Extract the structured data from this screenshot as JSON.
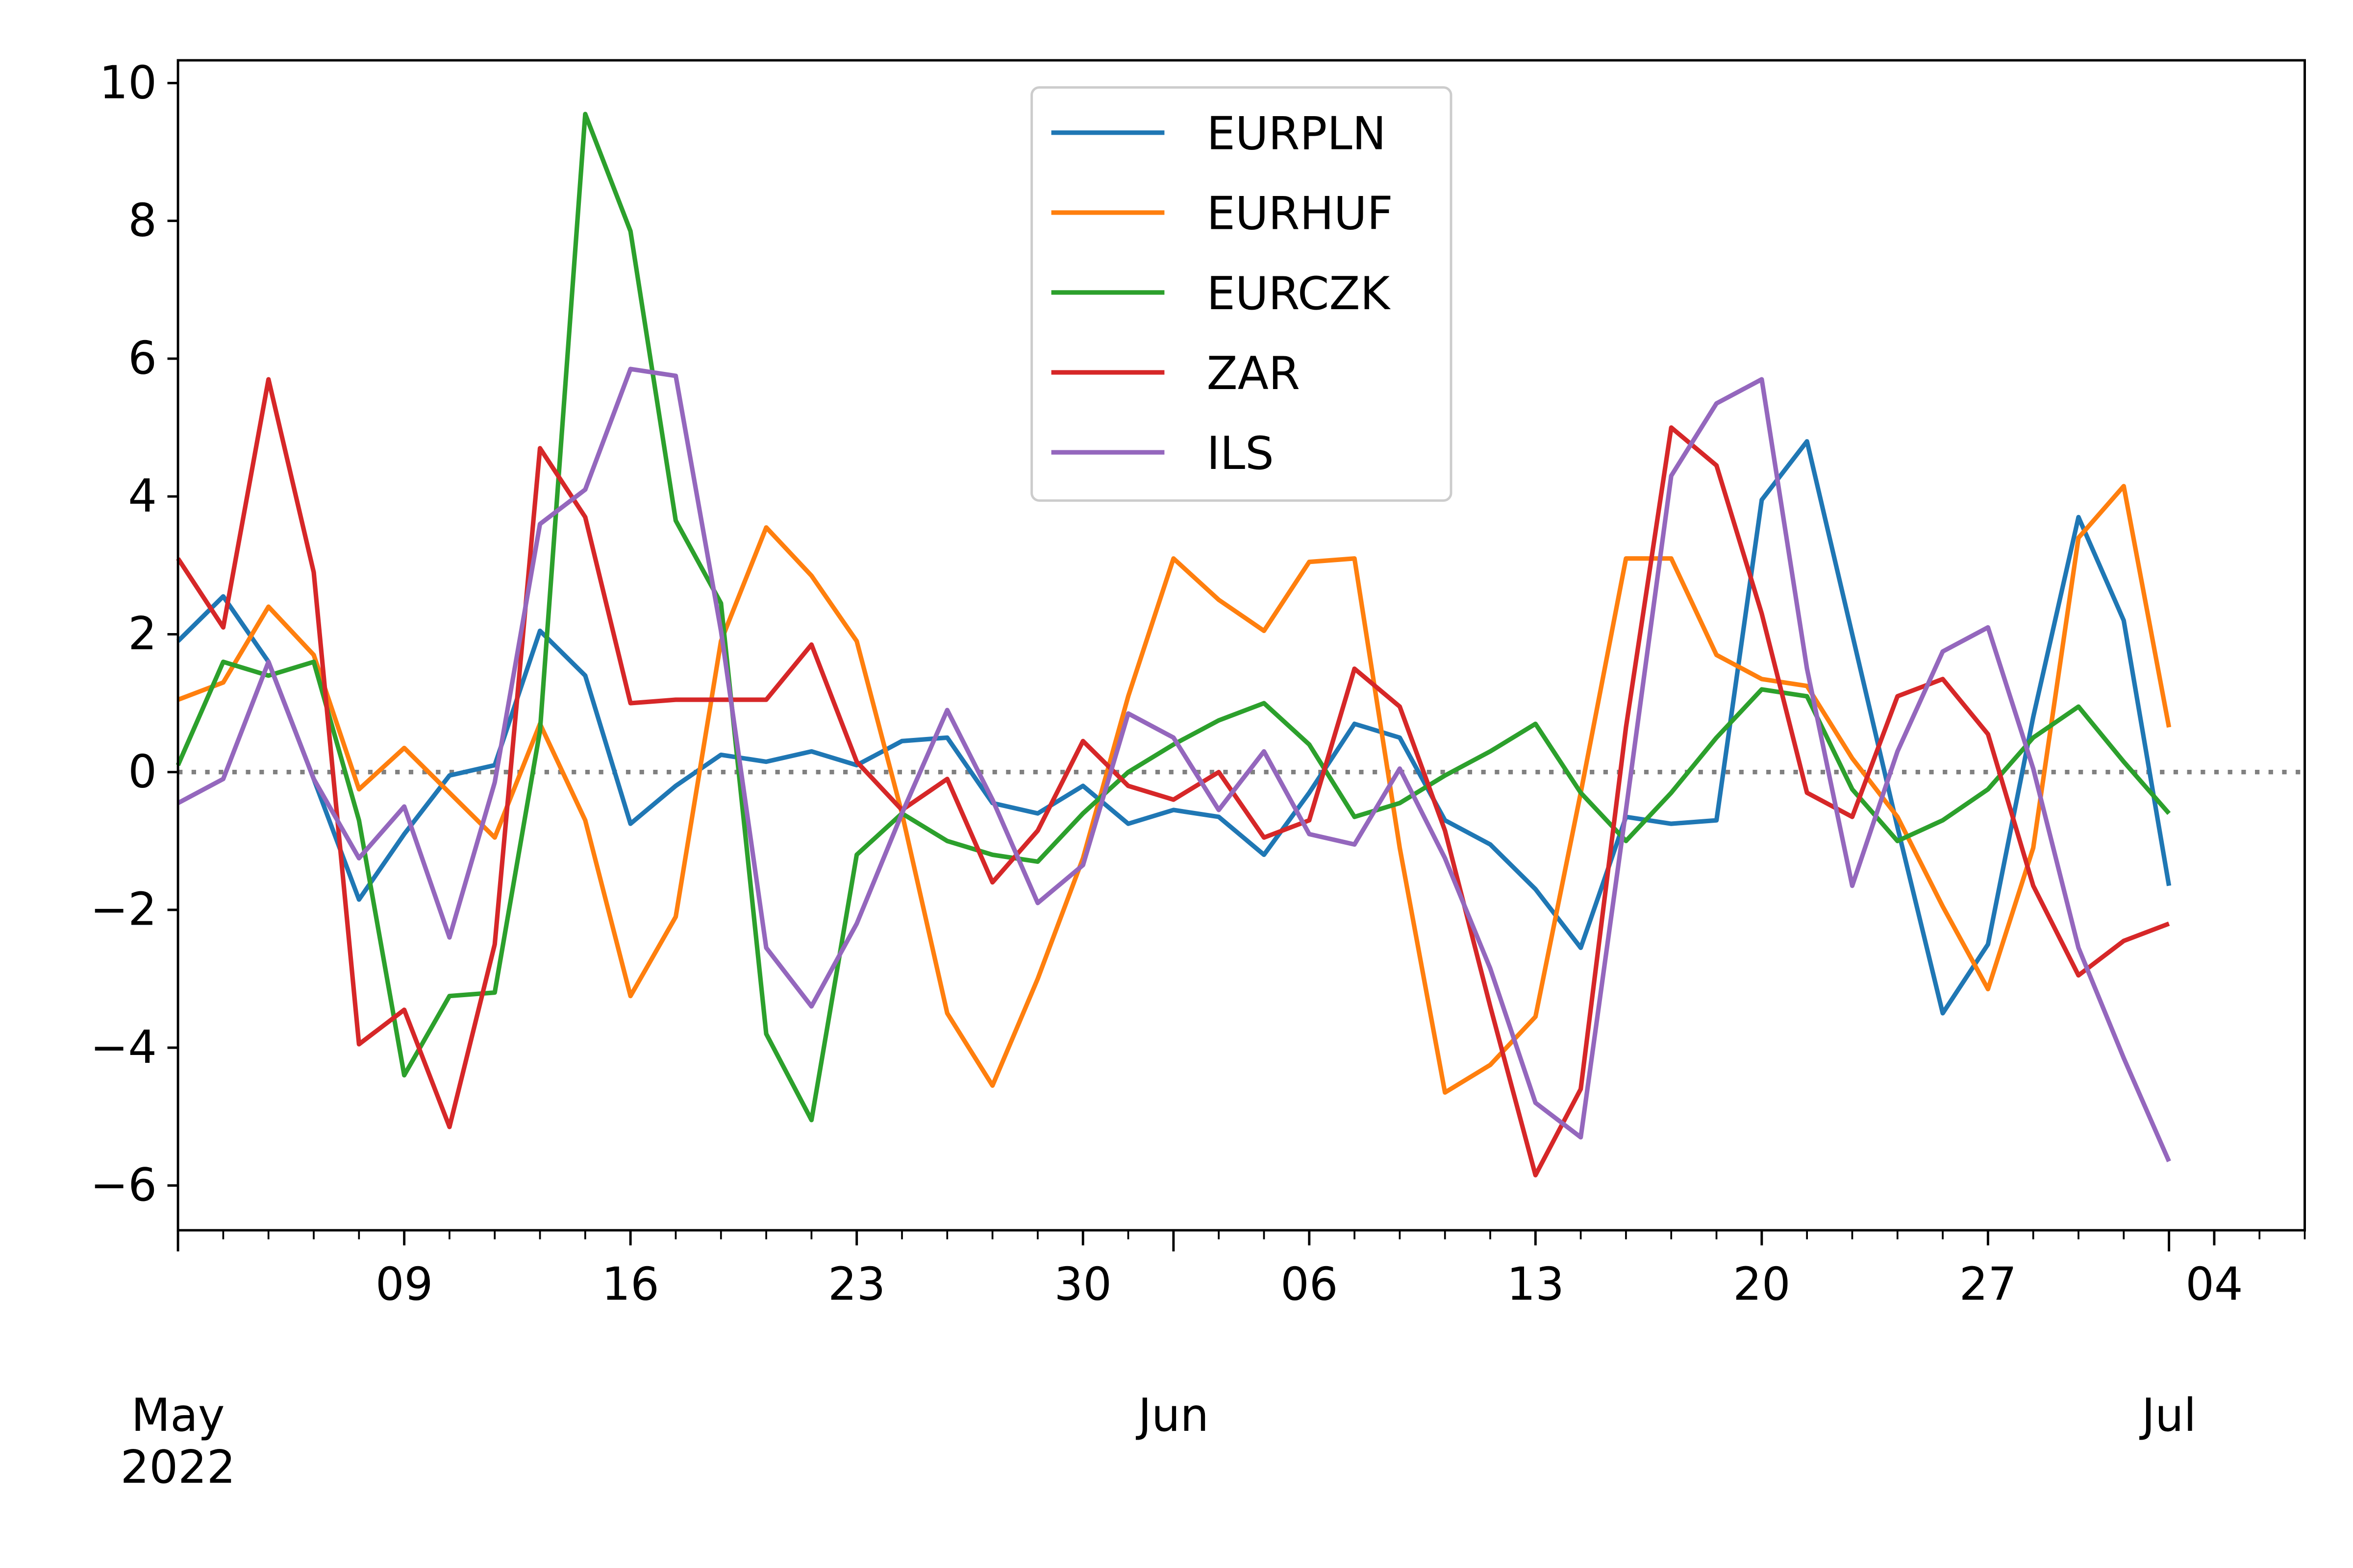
{
  "chart_data": {
    "type": "line",
    "x": [
      "2022-05-02",
      "2022-05-03",
      "2022-05-04",
      "2022-05-05",
      "2022-05-06",
      "2022-05-09",
      "2022-05-10",
      "2022-05-11",
      "2022-05-12",
      "2022-05-13",
      "2022-05-16",
      "2022-05-17",
      "2022-05-18",
      "2022-05-19",
      "2022-05-20",
      "2022-05-23",
      "2022-05-24",
      "2022-05-25",
      "2022-05-26",
      "2022-05-27",
      "2022-05-30",
      "2022-05-31",
      "2022-06-01",
      "2022-06-02",
      "2022-06-03",
      "2022-06-06",
      "2022-06-07",
      "2022-06-08",
      "2022-06-09",
      "2022-06-10",
      "2022-06-13",
      "2022-06-14",
      "2022-06-15",
      "2022-06-16",
      "2022-06-17",
      "2022-06-20",
      "2022-06-21",
      "2022-06-22",
      "2022-06-23",
      "2022-06-24",
      "2022-06-27",
      "2022-06-28",
      "2022-06-29",
      "2022-06-30",
      "2022-07-01"
    ],
    "series": [
      {
        "name": "EURPLN",
        "color": "#1f77b4",
        "values": [
          1.9,
          2.55,
          1.6,
          -0.1,
          -1.85,
          -0.9,
          -0.05,
          0.1,
          2.05,
          1.4,
          -0.75,
          -0.2,
          0.25,
          0.15,
          0.3,
          0.1,
          0.45,
          0.5,
          -0.45,
          -0.6,
          -0.2,
          -0.75,
          -0.55,
          -0.65,
          -1.2,
          -0.3,
          0.7,
          0.5,
          -0.7,
          -1.05,
          -1.7,
          -2.55,
          -0.65,
          -0.75,
          -0.7,
          3.95,
          4.8,
          2.0,
          -0.8,
          -3.5,
          -2.5,
          0.8,
          3.7,
          2.2,
          -1.65
        ]
      },
      {
        "name": "EURHUF",
        "color": "#ff7f0e",
        "values": [
          1.05,
          1.3,
          2.4,
          1.7,
          -0.25,
          0.35,
          -0.3,
          -0.95,
          0.7,
          -0.7,
          -3.25,
          -2.1,
          1.9,
          3.55,
          2.85,
          1.9,
          -0.6,
          -3.5,
          -4.55,
          -3.0,
          -1.25,
          1.1,
          3.1,
          2.5,
          2.05,
          3.05,
          3.1,
          -1.1,
          -4.65,
          -4.25,
          -3.55,
          -0.3,
          3.1,
          3.1,
          1.7,
          1.35,
          1.25,
          0.2,
          -0.65,
          -1.95,
          -3.15,
          -1.1,
          3.4,
          4.15,
          0.65
        ]
      },
      {
        "name": "EURCZK",
        "color": "#2ca02c",
        "values": [
          0.1,
          1.6,
          1.4,
          1.6,
          -0.7,
          -4.4,
          -3.25,
          -3.2,
          0.6,
          9.55,
          7.85,
          3.65,
          2.45,
          -3.8,
          -5.05,
          -1.2,
          -0.6,
          -1.0,
          -1.2,
          -1.3,
          -0.6,
          0.0,
          0.4,
          0.75,
          1.0,
          0.4,
          -0.65,
          -0.45,
          -0.05,
          0.3,
          0.7,
          -0.3,
          -1.0,
          -0.3,
          0.5,
          1.2,
          1.1,
          -0.25,
          -1.0,
          -0.7,
          -0.25,
          0.5,
          0.95,
          0.15,
          -0.6
        ]
      },
      {
        "name": "ZAR",
        "color": "#d62728",
        "values": [
          3.1,
          2.1,
          5.7,
          2.9,
          -3.95,
          -3.45,
          -5.15,
          -2.5,
          4.7,
          3.7,
          1.0,
          1.05,
          1.05,
          1.05,
          1.85,
          0.15,
          -0.55,
          -0.1,
          -1.6,
          -0.85,
          0.45,
          -0.2,
          -0.4,
          0.0,
          -0.95,
          -0.7,
          1.5,
          0.95,
          -0.85,
          -3.4,
          -5.85,
          -4.6,
          0.65,
          5.0,
          4.45,
          2.3,
          -0.3,
          -0.65,
          1.1,
          1.35,
          0.55,
          -1.65,
          -2.95,
          -2.45,
          -2.2
        ]
      },
      {
        "name": "ILS",
        "color": "#9467bd",
        "values": [
          -0.45,
          -0.1,
          1.6,
          -0.1,
          -1.25,
          -0.5,
          -2.4,
          -0.15,
          3.6,
          4.1,
          5.85,
          5.75,
          2.05,
          -2.55,
          -3.4,
          -2.2,
          -0.6,
          0.9,
          -0.4,
          -1.9,
          -1.35,
          0.85,
          0.5,
          -0.55,
          0.3,
          -0.9,
          -1.05,
          0.05,
          -1.25,
          -2.85,
          -4.8,
          -5.3,
          -0.55,
          4.3,
          5.35,
          5.7,
          1.5,
          -1.65,
          0.3,
          1.75,
          2.1,
          0.05,
          -2.55,
          -4.15,
          -5.65
        ]
      }
    ],
    "xlim": [
      "2022-05-02",
      "2022-07-06"
    ],
    "xticks": [
      {
        "value": "2022-05-09",
        "label": "09"
      },
      {
        "value": "2022-05-16",
        "label": "16"
      },
      {
        "value": "2022-05-23",
        "label": "23"
      },
      {
        "value": "2022-05-30",
        "label": "30"
      },
      {
        "value": "2022-06-06",
        "label": "06"
      },
      {
        "value": "2022-06-13",
        "label": "13"
      },
      {
        "value": "2022-06-20",
        "label": "20"
      },
      {
        "value": "2022-06-27",
        "label": "27"
      },
      {
        "value": "2022-07-04",
        "label": "04"
      }
    ],
    "xticks_major": [
      {
        "value": "2022-05-02",
        "label": "May\n2022"
      },
      {
        "value": "2022-06-01",
        "label": "Jun"
      },
      {
        "value": "2022-07-01",
        "label": "Jul"
      }
    ],
    "ylim": [
      -6.65,
      10.33
    ],
    "yticks": [
      {
        "value": -6,
        "label": "−6"
      },
      {
        "value": -4,
        "label": "−4"
      },
      {
        "value": -2,
        "label": "−2"
      },
      0,
      2,
      4,
      6,
      8,
      10
    ],
    "hline": {
      "value": 0,
      "color": "#808080"
    },
    "legend": "upper center"
  }
}
